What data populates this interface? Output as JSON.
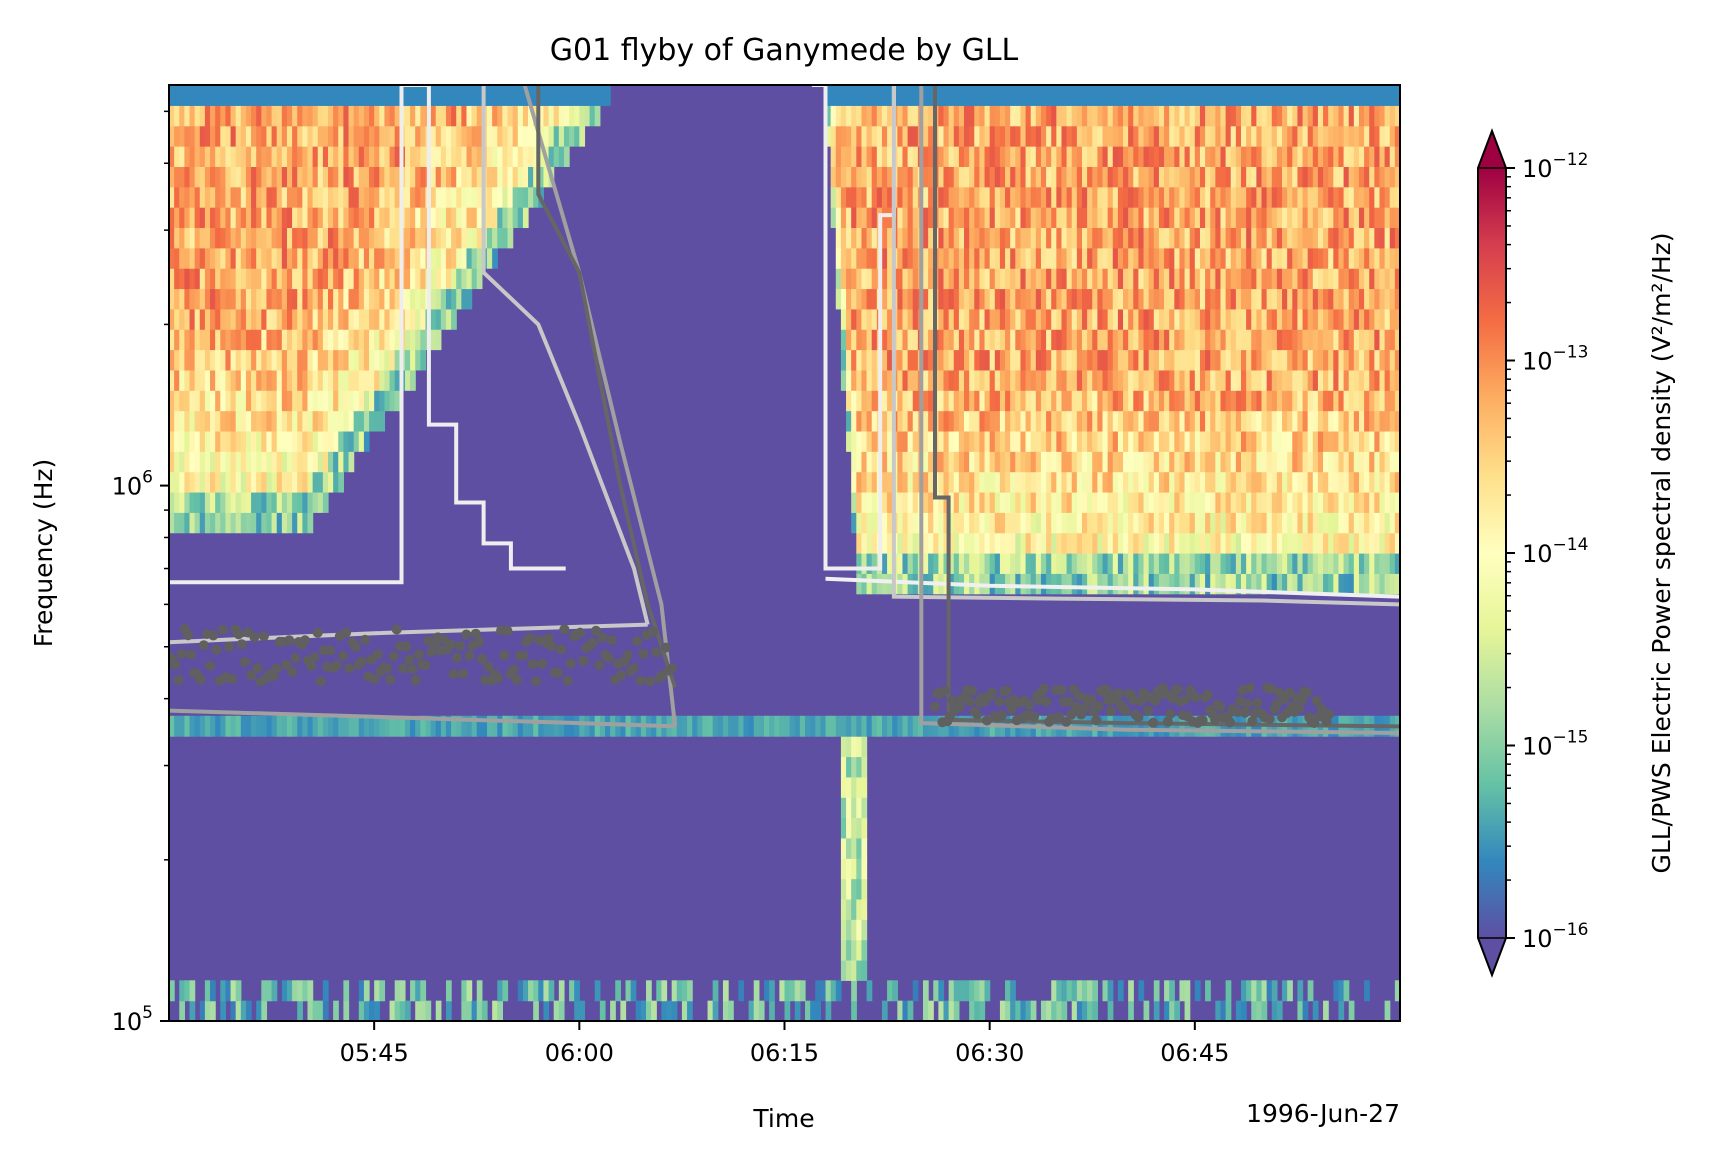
{
  "chart_data": {
    "type": "heatmap",
    "title": "G01 flyby of Ganymede by GLL",
    "xlabel": "Time",
    "ylabel": "Frequency (Hz)",
    "date_label": "1996-Jun-27",
    "x_range": [
      "05:30",
      "07:00"
    ],
    "x_ticks": [
      "05:45",
      "06:00",
      "06:15",
      "06:30",
      "06:45"
    ],
    "y_scale": "log",
    "y_range_hz": [
      100000,
      5600000
    ],
    "y_tick_labels": [
      {
        "base": "10",
        "exp": "5",
        "value": 100000
      },
      {
        "base": "10",
        "exp": "6",
        "value": 1000000
      }
    ],
    "colorbar": {
      "label": "GLL/PWS Electric Power spectral density",
      "label_units": "(V²/m²/Hz)",
      "scale": "log",
      "colormap": "Spectral_r",
      "range": [
        1e-16,
        1e-12
      ],
      "extend": "both",
      "tick_labels": [
        {
          "base": "10",
          "exp": "−16",
          "value": 1e-16
        },
        {
          "base": "10",
          "exp": "−15",
          "value": 1e-15
        },
        {
          "base": "10",
          "exp": "−14",
          "value": 1e-14
        },
        {
          "base": "10",
          "exp": "−13",
          "value": 1e-13
        },
        {
          "base": "10",
          "exp": "−12",
          "value": 1e-12
        }
      ]
    },
    "overlay_lines": [
      {
        "color": "#eeeeee",
        "points": [
          [
            "05:30",
            660000
          ],
          [
            "05:47",
            660000
          ],
          [
            "05:47",
            5600000
          ],
          [
            "05:49",
            5600000
          ],
          [
            "05:49",
            1300000
          ],
          [
            "05:51",
            1300000
          ],
          [
            "05:51",
            930000
          ],
          [
            "05:53",
            930000
          ],
          [
            "05:53",
            780000
          ],
          [
            "05:55",
            780000
          ],
          [
            "05:55",
            700000
          ],
          [
            "05:59",
            700000
          ]
        ]
      },
      {
        "color": "#eeeeee",
        "points": [
          [
            "06:17",
            5600000
          ],
          [
            "06:18",
            5600000
          ],
          [
            "06:18",
            700000
          ],
          [
            "06:22",
            700000
          ],
          [
            "06:22",
            3200000
          ],
          [
            "06:23",
            3200000
          ],
          [
            "06:23",
            5600000
          ]
        ]
      },
      {
        "color": "#f0f0f0",
        "points": [
          [
            "06:18",
            670000
          ],
          [
            "06:30",
            650000
          ],
          [
            "06:45",
            640000
          ],
          [
            "07:00",
            620000
          ]
        ]
      },
      {
        "color": "#c8c8c8",
        "points": [
          [
            "05:30",
            510000
          ],
          [
            "05:45",
            530000
          ],
          [
            "06:00",
            545000
          ],
          [
            "06:05",
            550000
          ]
        ]
      },
      {
        "color": "#c8c8c8",
        "points": [
          [
            "05:53",
            5600000
          ],
          [
            "05:53",
            2500000
          ],
          [
            "05:57",
            2000000
          ],
          [
            "06:00",
            1300000
          ],
          [
            "06:04",
            700000
          ],
          [
            "06:05",
            550000
          ]
        ]
      },
      {
        "color": "#c8c8c8",
        "points": [
          [
            "06:23",
            5600000
          ],
          [
            "06:23",
            620000
          ],
          [
            "06:35",
            615000
          ],
          [
            "06:50",
            610000
          ],
          [
            "07:00",
            600000
          ]
        ]
      },
      {
        "color": "#a0a0a0",
        "points": [
          [
            "05:30",
            380000
          ],
          [
            "05:45",
            370000
          ],
          [
            "06:00",
            360000
          ],
          [
            "06:07",
            355000
          ]
        ]
      },
      {
        "color": "#a0a0a0",
        "points": [
          [
            "05:56",
            5600000
          ],
          [
            "06:00",
            2500000
          ],
          [
            "06:03",
            1200000
          ],
          [
            "06:06",
            600000
          ],
          [
            "06:07",
            355000
          ]
        ]
      },
      {
        "color": "#a0a0a0",
        "points": [
          [
            "06:25",
            5600000
          ],
          [
            "06:25",
            360000
          ],
          [
            "06:40",
            350000
          ],
          [
            "07:00",
            345000
          ]
        ]
      },
      {
        "color": "#666666",
        "points": [
          [
            "05:57",
            5600000
          ],
          [
            "05:57",
            3500000
          ],
          [
            "06:00",
            2500000
          ],
          [
            "06:03",
            1000000
          ],
          [
            "06:05",
            600000
          ],
          [
            "06:07",
            420000
          ]
        ]
      },
      {
        "color": "#666666",
        "points": [
          [
            "06:26",
            5600000
          ],
          [
            "06:26",
            950000
          ],
          [
            "06:27",
            950000
          ],
          [
            "06:27",
            365000
          ],
          [
            "06:40",
            360000
          ],
          [
            "07:00",
            355000
          ]
        ]
      }
    ],
    "scatter_bands": [
      {
        "color": "#606060",
        "x_range": [
          "05:30",
          "06:07"
        ],
        "y_range_hz": [
          430000,
          540000
        ]
      },
      {
        "color": "#606060",
        "x_range": [
          "06:26",
          "06:55"
        ],
        "y_range_hz": [
          360000,
          420000
        ]
      }
    ]
  }
}
